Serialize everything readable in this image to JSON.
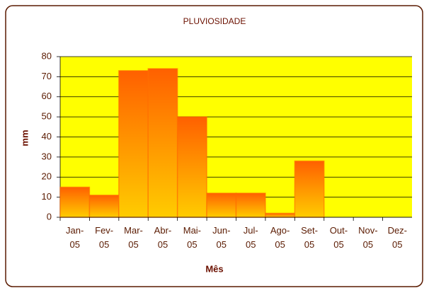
{
  "chart_data": {
    "type": "bar",
    "title": "PLUVIOSIDADE",
    "x_label": "Mês",
    "y_label": "mm",
    "categories": [
      "Jan-05",
      "Fev-05",
      "Mar-05",
      "Abr-05",
      "Mai-05",
      "Jun-05",
      "Jul-05",
      "Ago-05",
      "Set-05",
      "Out-05",
      "Nov-05",
      "Dez-05"
    ],
    "values": [
      15,
      11,
      73,
      74,
      50,
      12,
      12,
      2,
      28,
      0,
      0,
      0
    ],
    "color": "#ff6a00",
    "ylim": [
      0,
      80
    ],
    "yticks": [
      0,
      10,
      20,
      30,
      40,
      50,
      60,
      70,
      80
    ],
    "grid": true
  }
}
